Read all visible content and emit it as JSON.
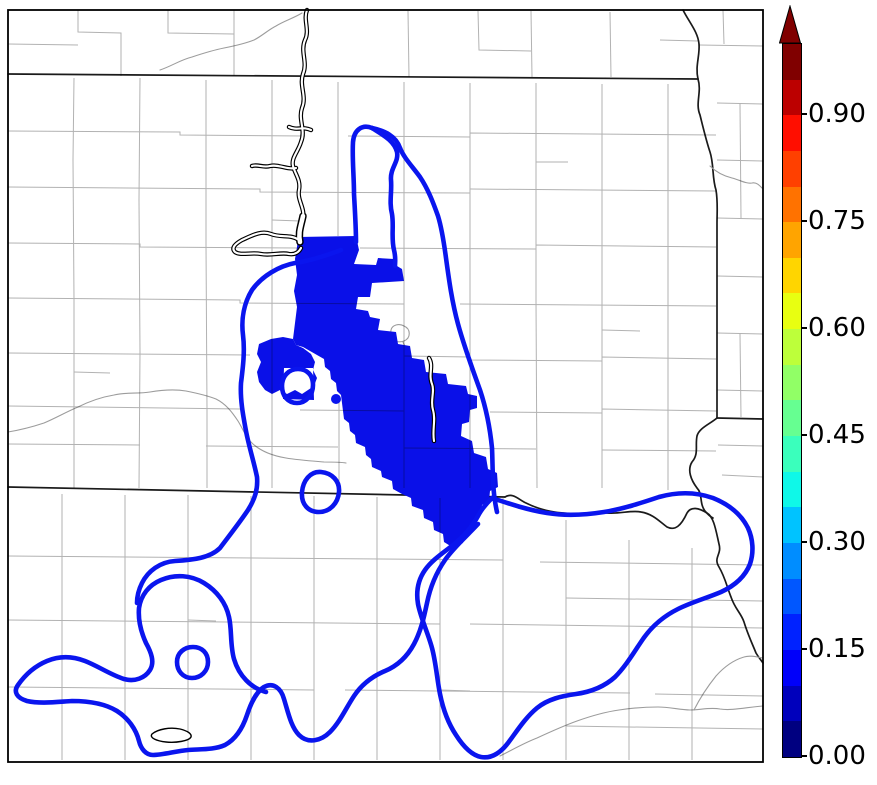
{
  "figure": {
    "kind": "probability contour map with discrete colorbar",
    "title": "",
    "visible_text": [
      "0.00",
      "0.15",
      "0.30",
      "0.45",
      "0.60",
      "0.75",
      "0.90"
    ]
  },
  "colorbar": {
    "orientation": "vertical",
    "range_min": 0.0,
    "range_max": 1.0,
    "extend": "max",
    "arrow_color": "#800000",
    "outline_color": "#000000",
    "ticks": [
      {
        "value": 0.0,
        "label": "0.00"
      },
      {
        "value": 0.15,
        "label": "0.15"
      },
      {
        "value": 0.3,
        "label": "0.30"
      },
      {
        "value": 0.45,
        "label": "0.45"
      },
      {
        "value": 0.6,
        "label": "0.60"
      },
      {
        "value": 0.75,
        "label": "0.75"
      },
      {
        "value": 0.9,
        "label": "0.90"
      }
    ],
    "segments_bottom_to_top": [
      "#000080",
      "#0000BC",
      "#0000FA",
      "#0022FF",
      "#0057FF",
      "#008DFF",
      "#00C3FF",
      "#0FF8E8",
      "#3AFFBC",
      "#66FF91",
      "#91FF66",
      "#BDFF3A",
      "#E8FF11",
      "#FFD500",
      "#FFA400",
      "#FF7200",
      "#FF4000",
      "#FF0E00",
      "#BC0000",
      "#800000"
    ]
  },
  "map": {
    "colors": {
      "background": "#ffffff",
      "frame": "#000000",
      "county": "#b2b2b2",
      "state": "#1a1a1a",
      "river_outline": "#000000",
      "river_fill": "#ffffff",
      "minor_river": "#9c9c9c",
      "contour": "#0a15ee",
      "probability_fill": "#0a10e8"
    },
    "features": [
      "county-boundaries",
      "state-borders",
      "missouri-river-reservoir",
      "minor-rivers",
      "small-lakes",
      "probability-filled-region",
      "probability-contour"
    ]
  },
  "chart_data": {
    "type": "map-contour",
    "title": "",
    "colorbar_tick_values": [
      0.0,
      0.15,
      0.3,
      0.45,
      0.6,
      0.75,
      0.9
    ],
    "colorbar_range": [
      0.0,
      1.0
    ],
    "n_color_bins": 20,
    "filled_region_value_bin": "lowest (0.00-0.05 exceeded)",
    "contour_line_color": "#0a15ee",
    "legend_position": "right"
  }
}
